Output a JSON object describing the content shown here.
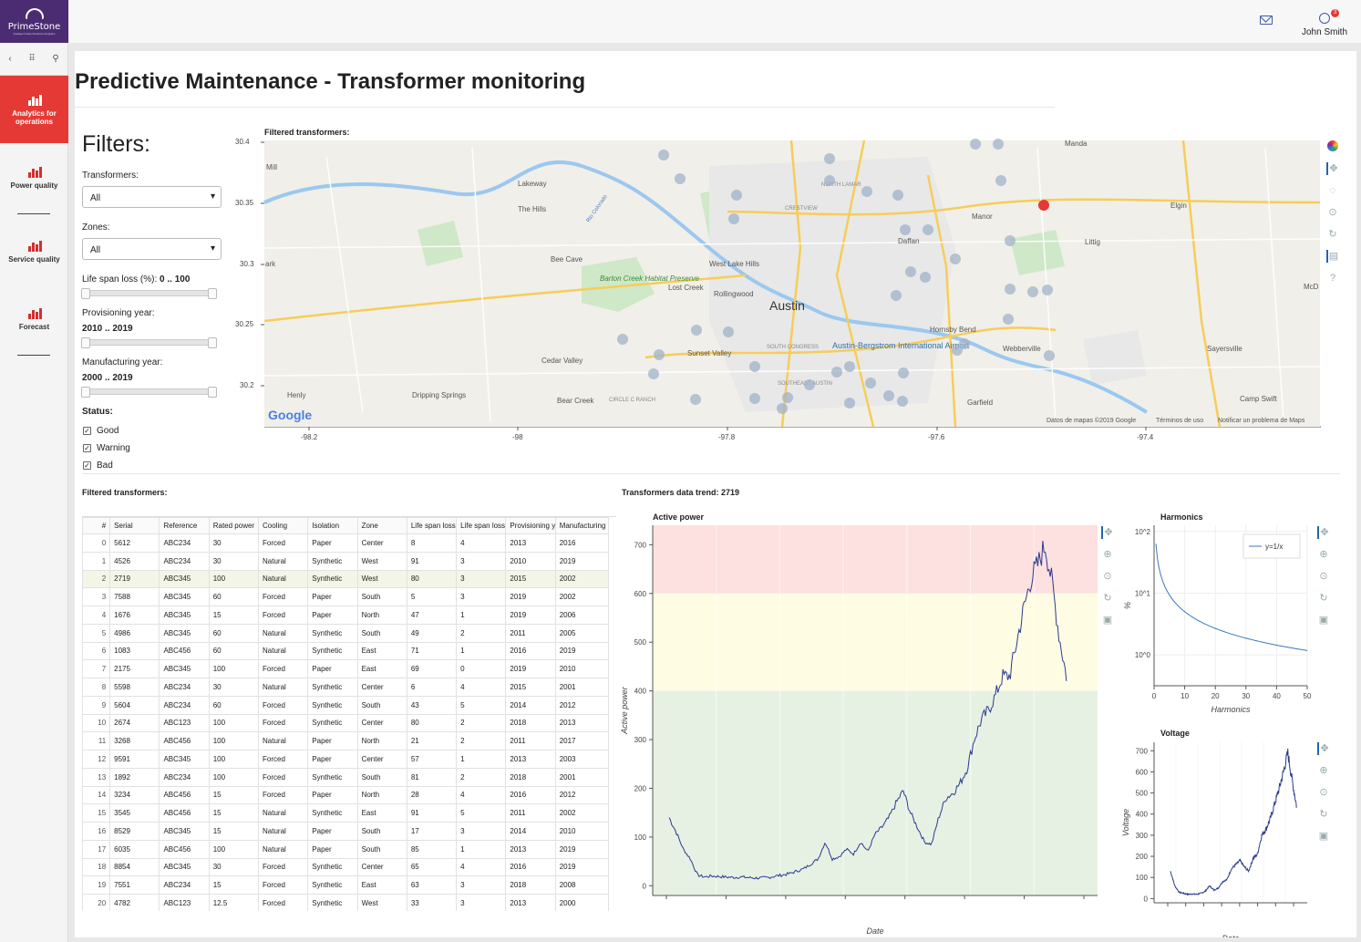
{
  "brand": {
    "name": "PrimeStone",
    "tagline": "Intelligent Data Solutions Analytics"
  },
  "sidebar": {
    "items": [
      {
        "label": "Analytics for operations",
        "active": true
      },
      {
        "label": "Power quality"
      },
      {
        "label": "Service quality"
      },
      {
        "label": "Forecast"
      }
    ]
  },
  "header": {
    "user_name": "John Smith",
    "notification_count": "3"
  },
  "page": {
    "title": "Predictive Maintenance - Transformer monitoring"
  },
  "filters": {
    "heading": "Filters:",
    "transformers_label": "Transformers:",
    "transformers_value": "All",
    "zones_label": "Zones:",
    "zones_value": "All",
    "lifespan_label": "Life span loss (%):",
    "lifespan_value": "0 .. 100",
    "provisioning_label": "Provisioning year:",
    "provisioning_value": "2010 .. 2019",
    "manufacturing_label": "Manufacturing year:",
    "manufacturing_value": "2000 .. 2019",
    "status_label": "Status:",
    "status": [
      {
        "label": "Good",
        "checked": true
      },
      {
        "label": "Warning",
        "checked": true
      },
      {
        "label": "Bad",
        "checked": true
      }
    ]
  },
  "map": {
    "title": "Filtered transformers:",
    "y_ticks": [
      "30.4",
      "30.35",
      "30.3",
      "30.25",
      "30.2"
    ],
    "x_ticks": [
      "-98.2",
      "-98",
      "-97.8",
      "-97.6",
      "-97.4"
    ],
    "places": [
      "Manda",
      "Lakeway",
      "The Hills",
      "Bee Cave",
      "Barton Creek Habitat Preserve",
      "Lost Creek",
      "West Lake Hills",
      "Rollingwood",
      "Austin",
      "Manor",
      "Daffan",
      "Elgin",
      "Littig",
      "Hornsby Bend",
      "Webberville",
      "Sayersville",
      "Cedar Valley",
      "Sunset Valley",
      "Austin-Bergstrom International Airport",
      "Dripping Springs",
      "Bear Creek",
      "Garfield",
      "Camp Swift",
      "Henly",
      "Mill",
      "ark",
      "McD",
      "NORTH LAMAR",
      "CRESTVIEW",
      "SOUTH CONGRESS",
      "SOUTHEAST AUSTIN",
      "CIRCLE C RANCH",
      "Rio Colorado"
    ],
    "attribution": "Datos de mapas ©2019 Google",
    "terms": "Términos de uso",
    "report": "Notificar un problema de Maps",
    "google": "Google",
    "highlight_color": "#e53935"
  },
  "table": {
    "title": "Filtered transformers:",
    "columns": [
      "#",
      "Serial",
      "Reference",
      "Rated power",
      "Cooling",
      "Isolation",
      "Zone",
      "Life span loss",
      "Life span loss",
      "Provisioning y",
      "Manufacturing"
    ],
    "selected_index": 2,
    "rows": [
      [
        "0",
        "5612",
        "ABC234",
        "30",
        "Forced",
        "Paper",
        "Center",
        "8",
        "4",
        "2013",
        "2016"
      ],
      [
        "1",
        "4526",
        "ABC234",
        "30",
        "Natural",
        "Synthetic",
        "West",
        "91",
        "3",
        "2010",
        "2019"
      ],
      [
        "2",
        "2719",
        "ABC345",
        "100",
        "Natural",
        "Synthetic",
        "West",
        "80",
        "3",
        "2015",
        "2002"
      ],
      [
        "3",
        "7588",
        "ABC345",
        "60",
        "Forced",
        "Paper",
        "South",
        "5",
        "3",
        "2019",
        "2002"
      ],
      [
        "4",
        "1676",
        "ABC345",
        "15",
        "Forced",
        "Paper",
        "North",
        "47",
        "1",
        "2019",
        "2006"
      ],
      [
        "5",
        "4986",
        "ABC345",
        "60",
        "Natural",
        "Synthetic",
        "South",
        "49",
        "2",
        "2011",
        "2005"
      ],
      [
        "6",
        "1083",
        "ABC456",
        "60",
        "Natural",
        "Synthetic",
        "East",
        "71",
        "1",
        "2016",
        "2019"
      ],
      [
        "7",
        "2175",
        "ABC345",
        "100",
        "Forced",
        "Paper",
        "East",
        "69",
        "0",
        "2019",
        "2010"
      ],
      [
        "8",
        "5598",
        "ABC234",
        "30",
        "Natural",
        "Synthetic",
        "Center",
        "6",
        "4",
        "2015",
        "2001"
      ],
      [
        "9",
        "5604",
        "ABC234",
        "60",
        "Forced",
        "Synthetic",
        "South",
        "43",
        "5",
        "2014",
        "2012"
      ],
      [
        "10",
        "2674",
        "ABC123",
        "100",
        "Forced",
        "Synthetic",
        "Center",
        "80",
        "2",
        "2018",
        "2013"
      ],
      [
        "11",
        "3268",
        "ABC456",
        "100",
        "Natural",
        "Paper",
        "North",
        "21",
        "2",
        "2011",
        "2017"
      ],
      [
        "12",
        "9591",
        "ABC345",
        "100",
        "Forced",
        "Paper",
        "Center",
        "57",
        "1",
        "2013",
        "2003"
      ],
      [
        "13",
        "1892",
        "ABC234",
        "100",
        "Forced",
        "Synthetic",
        "South",
        "81",
        "2",
        "2018",
        "2001"
      ],
      [
        "14",
        "3234",
        "ABC456",
        "15",
        "Forced",
        "Paper",
        "North",
        "28",
        "4",
        "2016",
        "2012"
      ],
      [
        "15",
        "3545",
        "ABC456",
        "15",
        "Natural",
        "Synthetic",
        "East",
        "91",
        "5",
        "2011",
        "2002"
      ],
      [
        "16",
        "8529",
        "ABC345",
        "15",
        "Natural",
        "Paper",
        "South",
        "17",
        "3",
        "2014",
        "2010"
      ],
      [
        "17",
        "6035",
        "ABC456",
        "100",
        "Natural",
        "Paper",
        "South",
        "85",
        "1",
        "2013",
        "2019"
      ],
      [
        "18",
        "8854",
        "ABC345",
        "30",
        "Forced",
        "Synthetic",
        "Center",
        "65",
        "4",
        "2016",
        "2019"
      ],
      [
        "19",
        "7551",
        "ABC234",
        "15",
        "Forced",
        "Synthetic",
        "East",
        "63",
        "3",
        "2018",
        "2008"
      ],
      [
        "20",
        "4782",
        "ABC123",
        "12.5",
        "Forced",
        "Synthetic",
        "West",
        "33",
        "3",
        "2013",
        "2000"
      ]
    ]
  },
  "trend": {
    "title": "Transformers data trend: 2719"
  },
  "chart_data": [
    {
      "type": "line",
      "title": "Active power",
      "xlabel": "Date",
      "ylabel": "Active power",
      "ylim": [
        -20,
        740
      ],
      "y_ticks": [
        "0",
        "100",
        "200",
        "300",
        "400",
        "500",
        "600",
        "700"
      ],
      "bands": [
        {
          "from": 600,
          "to": 740,
          "color": "#fde0e0"
        },
        {
          "from": 400,
          "to": 600,
          "color": "#fefde4"
        },
        {
          "from": -20,
          "to": 400,
          "color": "#e6f1e4"
        }
      ],
      "series": [
        {
          "values": [
            140,
            110,
            75,
            55,
            22,
            18,
            20,
            19,
            18,
            17,
            18,
            17,
            16,
            16,
            17,
            20,
            22,
            25,
            30,
            35,
            45,
            55,
            90,
            55,
            60,
            75,
            65,
            90,
            70,
            105,
            120,
            140,
            170,
            195,
            150,
            120,
            90,
            85,
            140,
            180,
            190,
            210,
            240,
            300,
            340,
            360,
            390,
            430,
            430,
            500,
            570,
            630,
            660,
            700,
            620,
            510,
            430
          ]
        }
      ],
      "line_color": "#2b3a8c"
    },
    {
      "type": "line",
      "title": "Harmonics",
      "xlabel": "Harmonics",
      "ylabel": "%",
      "y_scale": "log",
      "x_ticks": [
        "0",
        "10",
        "20",
        "30",
        "40",
        "50"
      ],
      "y_ticks": [
        "10^0",
        "10^1",
        "10^2"
      ],
      "xlim": [
        0,
        50
      ],
      "legend": "y=1/x",
      "legend_position": "top-right",
      "line_color": "#3b78b9"
    },
    {
      "type": "line",
      "title": "Voltage",
      "xlabel": "Date",
      "ylabel": "Voltage",
      "ylim": [
        -20,
        740
      ],
      "y_ticks": [
        "0",
        "100",
        "200",
        "300",
        "400",
        "500",
        "600",
        "700"
      ],
      "series": [
        {
          "values": [
            130,
            60,
            30,
            25,
            20,
            22,
            20,
            25,
            35,
            60,
            40,
            50,
            80,
            90,
            140,
            160,
            180,
            150,
            130,
            190,
            210,
            300,
            330,
            380,
            450,
            520,
            600,
            690,
            560,
            440
          ]
        }
      ],
      "line_color": "#2b3a8c"
    }
  ]
}
